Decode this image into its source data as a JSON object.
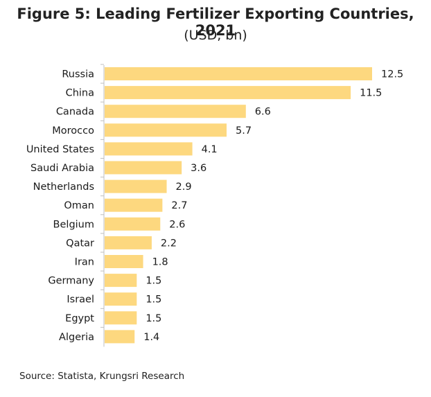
{
  "chart_data": {
    "type": "bar",
    "orientation": "horizontal",
    "title": "Figure 5: Leading Fertilizer Exporting Countries, 2021",
    "subtitle": "(USD, bn)",
    "categories": [
      "Russia",
      "China",
      "Canada",
      "Morocco",
      "United States",
      "Saudi Arabia",
      "Netherlands",
      "Oman",
      "Belgium",
      "Qatar",
      "Iran",
      "Germany",
      "Israel",
      "Egypt",
      "Algeria"
    ],
    "values": [
      12.5,
      11.5,
      6.6,
      5.7,
      4.1,
      3.6,
      2.9,
      2.7,
      2.6,
      2.2,
      1.8,
      1.5,
      1.5,
      1.5,
      1.4
    ],
    "value_labels": [
      "12.5",
      "11.5",
      "6.6",
      "5.7",
      "4.1",
      "3.6",
      "2.9",
      "2.7",
      "2.6",
      "2.2",
      "1.8",
      "1.5",
      "1.5",
      "1.5",
      "1.4"
    ],
    "xlim": [
      0,
      12.5
    ],
    "bar_color": "#fdd87f",
    "axis_color": "#bfbfbf",
    "grid": false,
    "legend": "none"
  },
  "source": "Source: Statista, Krungsri Research"
}
